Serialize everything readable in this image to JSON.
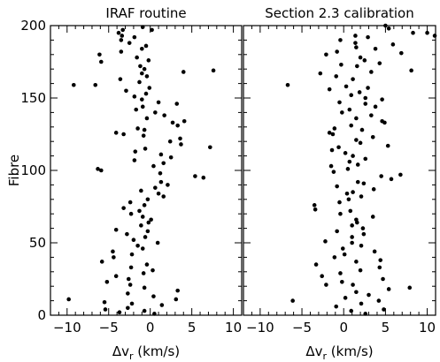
{
  "chart_data": [
    {
      "type": "scatter",
      "title": "IRAF routine",
      "xlabel_symbol": "Δv",
      "xlabel_subscript": "r",
      "xlabel_unit": " (km/s)",
      "ylabel": "Fibre",
      "xlim": [
        -12,
        11
      ],
      "ylim": [
        0,
        200
      ],
      "xticks": [
        -10,
        -5,
        0,
        5,
        10
      ],
      "yticks": [
        0,
        50,
        100,
        150,
        200
      ],
      "xtick_labels": [
        "−10",
        "−5",
        "0",
        "5",
        "10"
      ],
      "ytick_labels": [
        "0",
        "50",
        "100",
        "150",
        "200"
      ],
      "grid": false,
      "points": [
        [
          -0.9,
          199
        ],
        [
          0.2,
          197
        ],
        [
          -3.3,
          197
        ],
        [
          -3.8,
          195
        ],
        [
          -3.4,
          193
        ],
        [
          -1.9,
          192
        ],
        [
          -3.5,
          190
        ],
        [
          -2.5,
          188
        ],
        [
          -0.5,
          186
        ],
        [
          -1.0,
          184
        ],
        [
          -3.5,
          182
        ],
        [
          -6.1,
          180
        ],
        [
          -1.6,
          178
        ],
        [
          -0.2,
          176
        ],
        [
          -5.9,
          175
        ],
        [
          -1.2,
          172
        ],
        [
          -0.7,
          170
        ],
        [
          4.0,
          168
        ],
        [
          7.6,
          169
        ],
        [
          -1.0,
          167
        ],
        [
          -0.4,
          165
        ],
        [
          -3.6,
          163
        ],
        [
          -1.3,
          161
        ],
        [
          -9.2,
          159
        ],
        [
          -6.6,
          159
        ],
        [
          -0.1,
          157
        ],
        [
          -2.9,
          155
        ],
        [
          -0.5,
          153
        ],
        [
          -1.9,
          151
        ],
        [
          -1.0,
          149
        ],
        [
          1.0,
          147
        ],
        [
          3.2,
          146
        ],
        [
          -0.9,
          144
        ],
        [
          -1.7,
          142
        ],
        [
          0.6,
          140
        ],
        [
          1.7,
          138
        ],
        [
          -0.4,
          136
        ],
        [
          4.1,
          134
        ],
        [
          2.7,
          133
        ],
        [
          3.3,
          131
        ],
        [
          -1.5,
          129
        ],
        [
          -0.7,
          128
        ],
        [
          -4.1,
          126
        ],
        [
          -3.2,
          125
        ],
        [
          -0.8,
          124
        ],
        [
          3.6,
          122
        ],
        [
          2.4,
          120
        ],
        [
          3.7,
          118
        ],
        [
          7.2,
          116
        ],
        [
          -0.6,
          115
        ],
        [
          -1.8,
          113
        ],
        [
          1.3,
          111
        ],
        [
          2.5,
          109
        ],
        [
          -1.9,
          107
        ],
        [
          1.6,
          105
        ],
        [
          0.4,
          103
        ],
        [
          -6.3,
          101
        ],
        [
          -5.9,
          100
        ],
        [
          1.2,
          98
        ],
        [
          5.4,
          96
        ],
        [
          6.4,
          95
        ],
        [
          1.3,
          92
        ],
        [
          2.1,
          90
        ],
        [
          0.6,
          88
        ],
        [
          -1.1,
          86
        ],
        [
          1.0,
          84
        ],
        [
          1.6,
          82
        ],
        [
          -0.3,
          80
        ],
        [
          -2.4,
          78
        ],
        [
          -0.7,
          76
        ],
        [
          -3.2,
          74
        ],
        [
          -1.3,
          72
        ],
        [
          -2.3,
          70
        ],
        [
          -0.9,
          68
        ],
        [
          0.1,
          66
        ],
        [
          -0.2,
          64
        ],
        [
          -1.1,
          62
        ],
        [
          -4.1,
          59
        ],
        [
          -0.3,
          58
        ],
        [
          -2.8,
          56
        ],
        [
          -0.6,
          54
        ],
        [
          -2.0,
          52
        ],
        [
          0.9,
          50
        ],
        [
          -1.5,
          48
        ],
        [
          -0.9,
          46
        ],
        [
          -4.5,
          44
        ],
        [
          -2.2,
          42
        ],
        [
          -4.4,
          40
        ],
        [
          -5.8,
          37
        ],
        [
          -0.4,
          35
        ],
        [
          -2.3,
          33
        ],
        [
          0.3,
          31
        ],
        [
          -0.8,
          29
        ],
        [
          -4.1,
          27
        ],
        [
          -2.6,
          25
        ],
        [
          -5.2,
          23
        ],
        [
          -2.4,
          21
        ],
        [
          -0.7,
          19
        ],
        [
          3.3,
          17
        ],
        [
          -2.7,
          15
        ],
        [
          0.4,
          13
        ],
        [
          -9.8,
          11
        ],
        [
          3.1,
          11
        ],
        [
          -5.5,
          9
        ],
        [
          -2.2,
          8
        ],
        [
          1.4,
          7
        ],
        [
          -2.7,
          5
        ],
        [
          -5.4,
          4
        ],
        [
          -0.7,
          3
        ],
        [
          -3.7,
          2
        ],
        [
          0.5,
          1
        ]
      ]
    },
    {
      "type": "scatter",
      "title": "Section 2.3 calibration",
      "xlabel_symbol": "Δv",
      "xlabel_subscript": "r",
      "xlabel_unit": " (km/s)",
      "ylabel": "",
      "xlim": [
        -12,
        11
      ],
      "ylim": [
        0,
        200
      ],
      "xticks": [
        -10,
        -5,
        0,
        5,
        10
      ],
      "yticks": [
        0,
        50,
        100,
        150,
        200
      ],
      "xtick_labels": [
        "−10",
        "−5",
        "0",
        "5",
        "10"
      ],
      "ytick_labels": [],
      "grid": false,
      "points": [
        [
          5.0,
          200
        ],
        [
          5.4,
          198
        ],
        [
          10.0,
          195
        ],
        [
          8.3,
          195
        ],
        [
          10.9,
          193
        ],
        [
          1.4,
          193
        ],
        [
          2.9,
          192
        ],
        [
          -0.4,
          190
        ],
        [
          1.4,
          188
        ],
        [
          5.9,
          187
        ],
        [
          1.5,
          185
        ],
        [
          3.8,
          184
        ],
        [
          -0.8,
          182
        ],
        [
          6.9,
          181
        ],
        [
          -2.1,
          180
        ],
        [
          2.0,
          178
        ],
        [
          2.5,
          176
        ],
        [
          4.3,
          174
        ],
        [
          -0.3,
          173
        ],
        [
          1.6,
          172
        ],
        [
          8.1,
          169
        ],
        [
          3.3,
          168
        ],
        [
          -2.8,
          167
        ],
        [
          -0.9,
          165
        ],
        [
          1.1,
          163
        ],
        [
          -6.7,
          159
        ],
        [
          0.3,
          158
        ],
        [
          2.9,
          157
        ],
        [
          -1.7,
          156
        ],
        [
          1.9,
          154
        ],
        [
          0.9,
          152
        ],
        [
          2.6,
          150
        ],
        [
          4.6,
          149
        ],
        [
          -0.5,
          147
        ],
        [
          2.6,
          146
        ],
        [
          3.8,
          144
        ],
        [
          0.7,
          142
        ],
        [
          -0.2,
          140
        ],
        [
          3.3,
          138
        ],
        [
          1.5,
          136
        ],
        [
          4.6,
          134
        ],
        [
          4.9,
          133
        ],
        [
          0.9,
          131
        ],
        [
          -1.1,
          129
        ],
        [
          2.2,
          128
        ],
        [
          -1.7,
          126
        ],
        [
          -1.3,
          125
        ],
        [
          3.5,
          123
        ],
        [
          1.5,
          121
        ],
        [
          2.0,
          119
        ],
        [
          5.3,
          117
        ],
        [
          -0.6,
          116
        ],
        [
          -1.4,
          114
        ],
        [
          0.2,
          112
        ],
        [
          1.1,
          110
        ],
        [
          2.6,
          108
        ],
        [
          0.7,
          106
        ],
        [
          1.7,
          104
        ],
        [
          -1.5,
          103
        ],
        [
          0.5,
          101
        ],
        [
          -1.2,
          99
        ],
        [
          6.8,
          97
        ],
        [
          4.5,
          96
        ],
        [
          5.7,
          94
        ],
        [
          1.7,
          92
        ],
        [
          2.4,
          91
        ],
        [
          -0.8,
          89
        ],
        [
          3.6,
          87
        ],
        [
          1.1,
          85
        ],
        [
          0.4,
          84
        ],
        [
          2.1,
          82
        ],
        [
          0.6,
          80
        ],
        [
          -0.5,
          78
        ],
        [
          -3.5,
          76
        ],
        [
          -3.4,
          73
        ],
        [
          0.8,
          72
        ],
        [
          -0.4,
          70
        ],
        [
          3.5,
          68
        ],
        [
          1.5,
          66
        ],
        [
          1.6,
          64
        ],
        [
          1.0,
          62
        ],
        [
          2.3,
          60
        ],
        [
          -0.8,
          58
        ],
        [
          2.4,
          56
        ],
        [
          1.0,
          54
        ],
        [
          -2.2,
          51
        ],
        [
          1.0,
          50
        ],
        [
          2.1,
          48
        ],
        [
          -0.1,
          46
        ],
        [
          3.7,
          44
        ],
        [
          0.1,
          42
        ],
        [
          -1.1,
          40
        ],
        [
          4.4,
          38
        ],
        [
          1.5,
          37
        ],
        [
          -3.3,
          35
        ],
        [
          4.3,
          33
        ],
        [
          2.0,
          31
        ],
        [
          -0.4,
          29
        ],
        [
          -2.6,
          27
        ],
        [
          4.7,
          25
        ],
        [
          -0.2,
          23
        ],
        [
          1.1,
          21
        ],
        [
          -2.1,
          21
        ],
        [
          7.9,
          19
        ],
        [
          5.4,
          18
        ],
        [
          1.5,
          16
        ],
        [
          3.0,
          14
        ],
        [
          0.2,
          12
        ],
        [
          4.2,
          10
        ],
        [
          -6.1,
          10
        ],
        [
          2.1,
          8
        ],
        [
          -0.9,
          6
        ],
        [
          4.8,
          4
        ],
        [
          0.9,
          3
        ],
        [
          2.6,
          1
        ]
      ]
    }
  ]
}
